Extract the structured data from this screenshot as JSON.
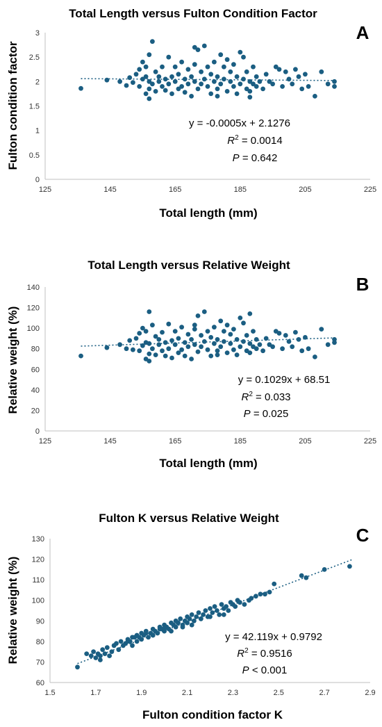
{
  "chart_data": [
    {
      "panel_label": "A",
      "type": "scatter",
      "title": "Total Length versus Fulton Condition Factor",
      "xlabel": "Total length (mm)",
      "ylabel": "Fulton condition factor",
      "xlim": [
        125,
        225
      ],
      "ylim": [
        0,
        3
      ],
      "xticks": [
        125,
        145,
        165,
        185,
        205,
        225
      ],
      "yticks": [
        0,
        0.5,
        1,
        1.5,
        2,
        2.5,
        3
      ],
      "trendline": {
        "slope": -0.0005,
        "intercept": 2.1276,
        "x_range": [
          136,
          214
        ]
      },
      "stats": {
        "equation": "y = -0.0005x + 2.1276",
        "r2_value": "= 0.0014",
        "p_value": "= 0.642"
      },
      "color": "#1b5e82",
      "x": [
        136,
        144,
        148,
        150,
        151,
        152,
        153,
        154,
        154,
        155,
        155,
        156,
        156,
        156,
        157,
        157,
        157,
        158,
        158,
        159,
        159,
        160,
        160,
        161,
        161,
        162,
        162,
        163,
        163,
        164,
        164,
        165,
        165,
        166,
        166,
        167,
        167,
        168,
        168,
        169,
        169,
        170,
        170,
        171,
        171,
        172,
        172,
        173,
        173,
        174,
        174,
        175,
        175,
        176,
        176,
        177,
        177,
        178,
        178,
        179,
        179,
        180,
        180,
        181,
        181,
        182,
        182,
        183,
        183,
        184,
        184,
        185,
        185,
        186,
        186,
        187,
        187,
        188,
        188,
        189,
        189,
        190,
        190,
        191,
        192,
        193,
        194,
        195,
        196,
        197,
        198,
        199,
        200,
        201,
        202,
        203,
        204,
        205,
        206,
        208,
        210,
        212,
        214,
        214,
        157,
        171,
        178,
        188
      ],
      "y": [
        1.86,
        2.03,
        2.0,
        1.92,
        2.08,
        1.98,
        2.15,
        1.9,
        2.25,
        2.05,
        2.4,
        1.75,
        2.1,
        2.3,
        1.85,
        2.0,
        2.55,
        1.95,
        2.82,
        2.2,
        1.8,
        2.0,
        2.1,
        1.9,
        2.3,
        2.05,
        1.82,
        2.5,
        1.95,
        2.1,
        1.75,
        2.0,
        2.3,
        1.85,
        2.15,
        1.9,
        2.4,
        2.05,
        1.78,
        2.25,
        1.95,
        2.1,
        1.7,
        2.35,
        2.0,
        2.65,
        1.85,
        2.2,
        1.95,
        2.73,
        2.05,
        1.9,
        2.3,
        2.15,
        1.75,
        2.0,
        2.4,
        1.85,
        2.1,
        2.55,
        1.95,
        2.3,
        2.05,
        1.8,
        2.45,
        2.0,
        2.2,
        1.9,
        2.35,
        1.75,
        2.1,
        2.6,
        1.95,
        2.05,
        2.5,
        1.85,
        2.2,
        2.0,
        1.8,
        2.3,
        1.95,
        2.1,
        1.9,
        2.0,
        1.85,
        2.15,
        2.0,
        1.95,
        2.3,
        2.25,
        1.9,
        2.2,
        2.05,
        1.95,
        2.25,
        2.1,
        1.85,
        2.15,
        1.9,
        1.7,
        2.2,
        1.95,
        2.0,
        1.9,
        1.65,
        2.7,
        1.7,
        1.68
      ]
    },
    {
      "panel_label": "B",
      "type": "scatter",
      "title": "Total Length versus Relative Weight",
      "xlabel": "Total length (mm)",
      "ylabel": "Relative weight (%)",
      "xlim": [
        125,
        225
      ],
      "ylim": [
        0,
        140
      ],
      "xticks": [
        125,
        145,
        165,
        185,
        205,
        225
      ],
      "yticks": [
        0,
        20,
        40,
        60,
        80,
        100,
        120,
        140
      ],
      "trendline": {
        "slope": 0.1029,
        "intercept": 68.51,
        "x_range": [
          136,
          214
        ]
      },
      "stats": {
        "equation": "y = 0.1029x + 68.51",
        "r2_value": "= 0.033",
        "p_value": "= 0.025"
      },
      "color": "#1b5e82",
      "x": [
        136,
        144,
        148,
        150,
        151,
        152,
        153,
        154,
        154,
        155,
        155,
        156,
        156,
        156,
        157,
        157,
        157,
        158,
        158,
        159,
        159,
        160,
        160,
        161,
        161,
        162,
        162,
        163,
        163,
        164,
        164,
        165,
        165,
        166,
        166,
        167,
        167,
        168,
        168,
        169,
        169,
        170,
        170,
        171,
        171,
        172,
        172,
        173,
        173,
        174,
        174,
        175,
        175,
        176,
        176,
        177,
        177,
        178,
        178,
        179,
        179,
        180,
        180,
        181,
        181,
        182,
        182,
        183,
        183,
        184,
        184,
        185,
        185,
        186,
        186,
        187,
        187,
        188,
        188,
        189,
        189,
        190,
        190,
        191,
        192,
        193,
        194,
        195,
        196,
        197,
        198,
        199,
        200,
        201,
        202,
        203,
        204,
        205,
        206,
        208,
        210,
        212,
        214,
        214,
        157,
        171,
        178,
        188
      ],
      "y": [
        73,
        81,
        84,
        80,
        88,
        79,
        90,
        78,
        95,
        83,
        100,
        70,
        86,
        97,
        75,
        85,
        116,
        80,
        103,
        92,
        74,
        84,
        89,
        78,
        96,
        86,
        73,
        104,
        80,
        88,
        71,
        84,
        97,
        76,
        90,
        79,
        101,
        86,
        73,
        94,
        82,
        89,
        70,
        99,
        84,
        112,
        77,
        93,
        82,
        116,
        87,
        79,
        97,
        91,
        73,
        85,
        101,
        78,
        89,
        107,
        82,
        97,
        87,
        76,
        103,
        85,
        94,
        79,
        99,
        74,
        89,
        110,
        82,
        87,
        105,
        78,
        93,
        85,
        76,
        97,
        82,
        89,
        80,
        84,
        78,
        90,
        84,
        82,
        97,
        95,
        80,
        93,
        87,
        82,
        96,
        89,
        78,
        91,
        80,
        72,
        99,
        84,
        86,
        89,
        68,
        103,
        74,
        114
      ]
    },
    {
      "panel_label": "C",
      "type": "scatter",
      "title": "Fulton K versus Relative Weight",
      "xlabel": "Fulton condition factor K",
      "ylabel": "Relative weight (%)",
      "xlim": [
        1.5,
        2.9
      ],
      "ylim": [
        60,
        130
      ],
      "xticks": [
        1.5,
        1.7,
        1.9,
        2.1,
        2.3,
        2.5,
        2.7,
        2.9
      ],
      "yticks": [
        60,
        70,
        80,
        90,
        100,
        110,
        120,
        130
      ],
      "trendline": {
        "slope": 42.119,
        "intercept": 0.9792,
        "x_range": [
          1.62,
          2.82
        ]
      },
      "stats": {
        "equation": "y = 42.119x + 0.9792",
        "r2_value": "= 0.9516",
        "p_value": "< 0.001"
      },
      "color": "#1b5e82",
      "x": [
        1.62,
        1.66,
        1.68,
        1.69,
        1.7,
        1.71,
        1.72,
        1.73,
        1.74,
        1.75,
        1.76,
        1.77,
        1.78,
        1.79,
        1.8,
        1.81,
        1.82,
        1.83,
        1.84,
        1.85,
        1.86,
        1.87,
        1.88,
        1.88,
        1.89,
        1.9,
        1.9,
        1.91,
        1.92,
        1.93,
        1.94,
        1.95,
        1.95,
        1.96,
        1.97,
        1.98,
        1.99,
        2.0,
        2.0,
        2.01,
        2.02,
        2.03,
        2.04,
        2.05,
        2.05,
        2.06,
        2.07,
        2.08,
        2.09,
        2.1,
        2.1,
        2.11,
        2.12,
        2.13,
        2.14,
        2.15,
        2.16,
        2.17,
        2.18,
        2.19,
        2.2,
        2.21,
        2.22,
        2.23,
        2.24,
        2.25,
        2.26,
        2.27,
        2.28,
        2.29,
        2.3,
        2.31,
        2.32,
        2.33,
        2.35,
        2.37,
        2.38,
        2.4,
        2.42,
        2.44,
        2.46,
        2.48,
        2.6,
        2.62,
        2.7,
        2.81,
        1.86,
        1.92,
        2.0,
        2.08,
        2.16,
        2.26,
        1.78,
        1.95,
        2.03,
        2.12,
        2.2,
        1.72,
        1.84,
        1.98,
        2.06
      ],
      "y": [
        67.5,
        74,
        73,
        75,
        72,
        74,
        73,
        76,
        74,
        77,
        73,
        75,
        78,
        79,
        76,
        80,
        78,
        79,
        81,
        80,
        78,
        82,
        80,
        83,
        82,
        81,
        84,
        83,
        85,
        82,
        84,
        86,
        83,
        85,
        84,
        87,
        86,
        85,
        88,
        87,
        86,
        89,
        88,
        87,
        90,
        89,
        91,
        88,
        90,
        92,
        89,
        91,
        93,
        90,
        92,
        94,
        91,
        93,
        95,
        92,
        96,
        94,
        97,
        95,
        93,
        98,
        96,
        97,
        95,
        99,
        98,
        97,
        100,
        99,
        98,
        100,
        101,
        102,
        103,
        103,
        104,
        108,
        112,
        111,
        115,
        116.5,
        82,
        84,
        86,
        87,
        91,
        93,
        78,
        83,
        85,
        88,
        92,
        71,
        80,
        86,
        89
      ],
      "anchor_x_note": ""
    }
  ]
}
